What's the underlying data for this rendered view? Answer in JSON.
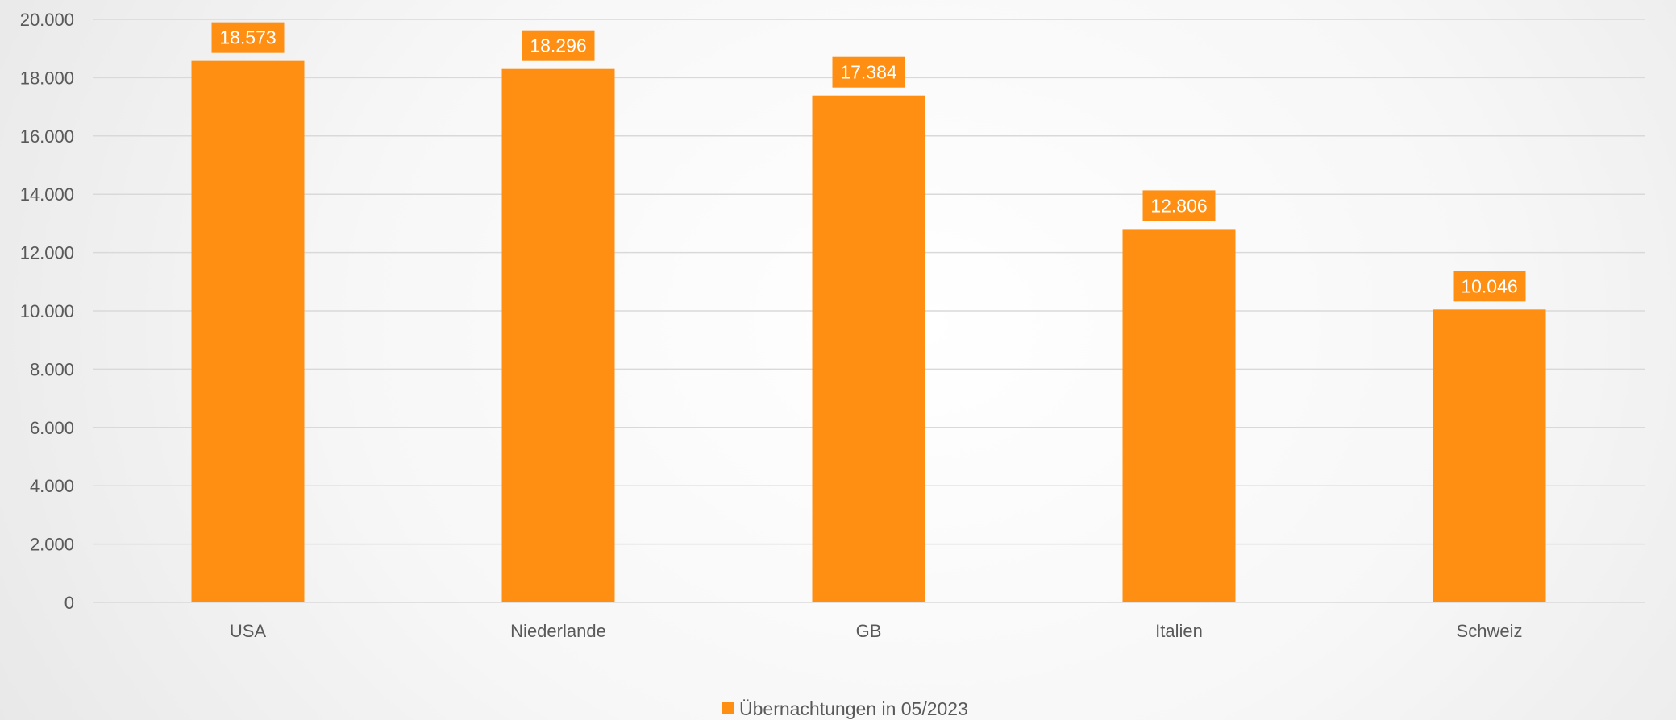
{
  "chart_data": {
    "type": "bar",
    "categories": [
      "USA",
      "Niederlande",
      "GB",
      "Italien",
      "Schweiz"
    ],
    "series": [
      {
        "name": "Übernachtungen in 05/2023",
        "values": [
          18573,
          18296,
          17384,
          12806,
          10046
        ],
        "data_labels": [
          "18.573",
          "18.296",
          "17.384",
          "12.806",
          "10.046"
        ],
        "color": "#FF8F12"
      }
    ],
    "ylim": [
      0,
      20000
    ],
    "y_ticks": [
      0,
      2000,
      4000,
      6000,
      8000,
      10000,
      12000,
      14000,
      16000,
      18000,
      20000
    ],
    "y_tick_labels": [
      "0",
      "2.000",
      "4.000",
      "6.000",
      "8.000",
      "10.000",
      "12.000",
      "14.000",
      "16.000",
      "18.000",
      "20.000"
    ],
    "grid": true,
    "legend_position": "bottom",
    "gridline_color": "#D9D9D9",
    "text_color": "#595959"
  }
}
